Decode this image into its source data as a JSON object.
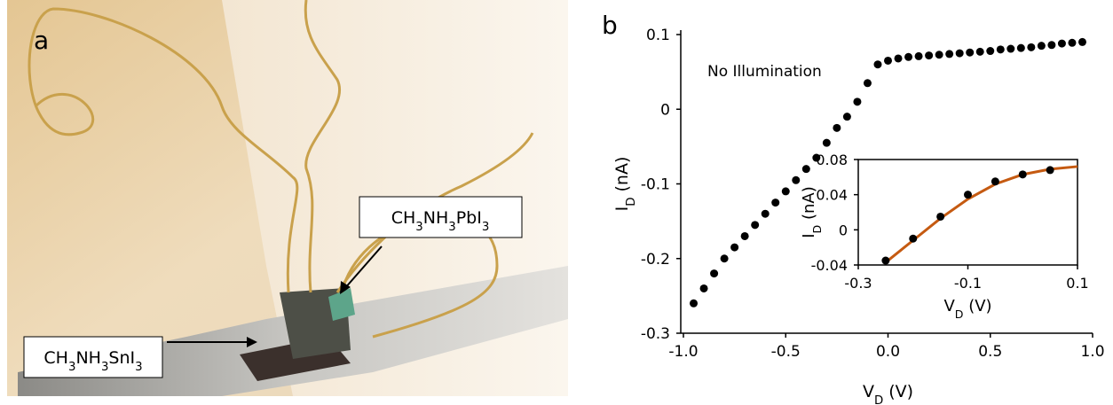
{
  "panel_a": {
    "label": "a",
    "callouts": [
      "CH3NH3PbI3",
      "CH3NH3SnI3"
    ]
  },
  "panel_b_label": "b",
  "chart_data": [
    {
      "type": "scatter",
      "x": [
        -0.95,
        -0.9,
        -0.85,
        -0.8,
        -0.75,
        -0.7,
        -0.65,
        -0.6,
        -0.55,
        -0.5,
        -0.45,
        -0.4,
        -0.35,
        -0.3,
        -0.25,
        -0.2,
        -0.15,
        -0.1,
        -0.05,
        0,
        0.05,
        0.1,
        0.15,
        0.2,
        0.25,
        0.3,
        0.35,
        0.4,
        0.45,
        0.5,
        0.55,
        0.6,
        0.65,
        0.7,
        0.75,
        0.8,
        0.85,
        0.9,
        0.95
      ],
      "series": [
        {
          "style": "marker",
          "color": "#000000",
          "values": [
            -0.26,
            -0.24,
            -0.22,
            -0.2,
            -0.185,
            -0.17,
            -0.155,
            -0.14,
            -0.125,
            -0.11,
            -0.095,
            -0.08,
            -0.065,
            -0.045,
            -0.025,
            -0.01,
            0.01,
            0.035,
            0.06,
            0.065,
            0.068,
            0.07,
            0.071,
            0.072,
            0.073,
            0.074,
            0.075,
            0.076,
            0.077,
            0.078,
            0.08,
            0.081,
            0.082,
            0.083,
            0.085,
            0.086,
            0.088,
            0.089,
            0.09
          ]
        }
      ],
      "xlim": [
        -1,
        1
      ],
      "xticks": [
        {
          "value": -1,
          "label": "-1.0"
        },
        -0.5,
        {
          "value": 0,
          "label": "0.0"
        },
        0.5,
        {
          "value": 1,
          "label": "1.0"
        }
      ],
      "ylim": [
        -0.3,
        0.1
      ],
      "yticks": [
        -0.3,
        -0.2,
        -0.1,
        0,
        0.1
      ],
      "xlabel": "VD (V)",
      "ylabel": "ID (nA)",
      "annotation": "No Illumination"
    },
    {
      "type": "scatter",
      "series": [
        {
          "style": "line",
          "color": "#c55a11",
          "x": [
            -0.25,
            -0.2,
            -0.15,
            -0.1,
            -0.05,
            0,
            0.05,
            0.1
          ],
          "values": [
            -0.037,
            -0.012,
            0.013,
            0.035,
            0.052,
            0.063,
            0.069,
            0.072
          ]
        },
        {
          "style": "marker",
          "color": "#000000",
          "x": [
            -0.25,
            -0.2,
            -0.15,
            -0.1,
            -0.05,
            0,
            0.05
          ],
          "values": [
            -0.035,
            -0.01,
            0.015,
            0.04,
            0.055,
            0.063,
            0.068
          ]
        }
      ],
      "xlim": [
        -0.3,
        0.1
      ],
      "xticks": [
        -0.3,
        -0.1,
        0.1
      ],
      "ylim": [
        -0.04,
        0.08
      ],
      "yticks": [
        -0.04,
        0,
        0.04,
        0.08
      ],
      "xlabel": "VD (V)",
      "ylabel": "ID (nA)"
    }
  ]
}
